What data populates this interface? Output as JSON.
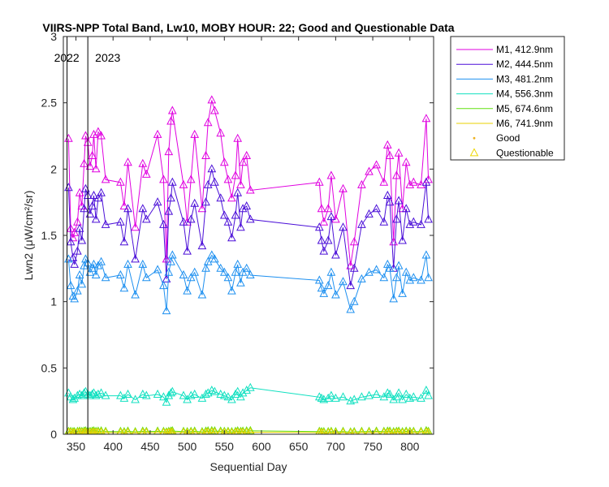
{
  "chart_data": {
    "type": "line",
    "title": "VIIRS-NPP Total Band, Lw10, MOBY HOUR: 22;  Good and Questionable Data",
    "xlabel": "Sequential Day",
    "ylabel": "Lwn2 (μW/cm²/sr)",
    "xlim": [
      333,
      832
    ],
    "ylim": [
      0,
      3
    ],
    "xticks": [
      350,
      400,
      450,
      500,
      550,
      600,
      650,
      700,
      750,
      800
    ],
    "yticks": [
      0,
      0.5,
      1,
      1.5,
      2,
      2.5,
      3
    ],
    "ytick_labels": [
      "0",
      "0.5",
      "1",
      "1.5",
      "2",
      "2.5",
      "3"
    ],
    "grid": false,
    "legend_position": "outside-top-right",
    "year_markers": [
      {
        "x": 338,
        "label": "2022"
      },
      {
        "x": 366,
        "label": "2023"
      }
    ],
    "markers": {
      "good": "Good",
      "questionable": "Questionable",
      "good_color": "#EDB120",
      "questionable_color": "#EDD700"
    },
    "x": [
      340,
      343,
      346,
      348,
      352,
      355,
      358,
      361,
      363,
      366,
      369,
      372,
      374,
      377,
      380,
      384,
      390,
      410,
      415,
      420,
      430,
      440,
      445,
      460,
      468,
      472,
      475,
      478,
      480,
      495,
      500,
      505,
      510,
      520,
      525,
      528,
      533,
      537,
      545,
      550,
      555,
      560,
      565,
      568,
      572,
      575,
      580,
      585,
      678,
      681,
      684,
      690,
      694,
      700,
      710,
      720,
      725,
      735,
      745,
      755,
      765,
      770,
      773,
      778,
      782,
      785,
      790,
      795,
      800,
      805,
      815,
      822,
      825
    ],
    "series": [
      {
        "name": "M1, 412.9nm",
        "color": "#E000E0",
        "values": [
          2.23,
          1.55,
          1.48,
          1.52,
          1.6,
          1.82,
          1.72,
          2.04,
          2.25,
          2.2,
          2.02,
          2.1,
          2.26,
          2.0,
          2.28,
          2.25,
          1.92,
          1.9,
          1.72,
          2.05,
          1.56,
          2.04,
          1.96,
          2.26,
          1.92,
          1.32,
          2.13,
          2.36,
          2.44,
          1.88,
          1.6,
          1.92,
          2.26,
          1.7,
          2.1,
          2.35,
          2.52,
          2.44,
          2.27,
          2.05,
          1.92,
          1.78,
          1.95,
          2.23,
          1.88,
          2.05,
          2.1,
          1.84,
          1.9,
          1.7,
          1.6,
          1.7,
          1.95,
          1.62,
          1.85,
          1.27,
          1.45,
          1.88,
          1.98,
          2.03,
          1.9,
          2.18,
          2.1,
          1.45,
          1.95,
          2.12,
          1.7,
          2.05,
          1.88,
          1.9,
          1.88,
          2.38,
          1.92
        ]
      },
      {
        "name": "M2, 444.5nm",
        "color": "#4B0FD8",
        "values": [
          1.86,
          1.45,
          1.33,
          1.28,
          1.38,
          1.55,
          1.46,
          1.7,
          1.85,
          1.8,
          1.66,
          1.72,
          1.8,
          1.62,
          1.78,
          1.82,
          1.58,
          1.6,
          1.45,
          1.7,
          1.32,
          1.7,
          1.62,
          1.75,
          1.58,
          1.17,
          1.68,
          1.78,
          1.9,
          1.6,
          1.38,
          1.62,
          1.74,
          1.42,
          1.75,
          1.88,
          2.0,
          1.9,
          1.78,
          1.65,
          1.6,
          1.48,
          1.65,
          1.82,
          1.56,
          1.7,
          1.72,
          1.62,
          1.56,
          1.46,
          1.38,
          1.46,
          1.64,
          1.35,
          1.56,
          1.12,
          1.25,
          1.58,
          1.66,
          1.7,
          1.6,
          1.8,
          1.75,
          1.25,
          1.62,
          1.76,
          1.46,
          1.7,
          1.58,
          1.6,
          1.58,
          1.9,
          1.62
        ]
      },
      {
        "name": "M3, 481.2nm",
        "color": "#1E90F0",
        "values": [
          1.32,
          1.12,
          1.04,
          1.02,
          1.08,
          1.2,
          1.13,
          1.27,
          1.32,
          1.29,
          1.22,
          1.25,
          1.28,
          1.2,
          1.27,
          1.3,
          1.18,
          1.2,
          1.1,
          1.28,
          1.05,
          1.28,
          1.18,
          1.24,
          1.12,
          0.93,
          1.22,
          1.3,
          1.35,
          1.2,
          1.08,
          1.18,
          1.22,
          1.05,
          1.25,
          1.3,
          1.35,
          1.32,
          1.25,
          1.22,
          1.18,
          1.08,
          1.22,
          1.28,
          1.14,
          1.22,
          1.25,
          1.2,
          1.16,
          1.1,
          1.06,
          1.12,
          1.22,
          1.05,
          1.15,
          0.94,
          1.0,
          1.17,
          1.22,
          1.24,
          1.18,
          1.28,
          1.25,
          1.02,
          1.18,
          1.27,
          1.06,
          1.22,
          1.16,
          1.18,
          1.16,
          1.35,
          1.18
        ]
      },
      {
        "name": "M4, 556.3nm",
        "color": "#10E0C0",
        "values": [
          0.31,
          0.28,
          0.26,
          0.27,
          0.29,
          0.3,
          0.29,
          0.31,
          0.32,
          0.3,
          0.29,
          0.3,
          0.31,
          0.29,
          0.3,
          0.31,
          0.29,
          0.29,
          0.27,
          0.3,
          0.26,
          0.3,
          0.29,
          0.3,
          0.28,
          0.24,
          0.29,
          0.31,
          0.32,
          0.29,
          0.26,
          0.29,
          0.3,
          0.27,
          0.3,
          0.31,
          0.33,
          0.32,
          0.3,
          0.29,
          0.28,
          0.26,
          0.3,
          0.32,
          0.28,
          0.31,
          0.33,
          0.35,
          0.28,
          0.27,
          0.26,
          0.27,
          0.29,
          0.27,
          0.28,
          0.25,
          0.26,
          0.28,
          0.29,
          0.3,
          0.28,
          0.31,
          0.3,
          0.26,
          0.28,
          0.31,
          0.26,
          0.3,
          0.27,
          0.28,
          0.27,
          0.33,
          0.29
        ]
      },
      {
        "name": "M5, 674.6nm",
        "color": "#60E010",
        "values": [
          0.02,
          0.02,
          0.018,
          0.018,
          0.02,
          0.022,
          0.02,
          0.022,
          0.024,
          0.022,
          0.02,
          0.022,
          0.024,
          0.02,
          0.022,
          0.024,
          0.02,
          0.02,
          0.018,
          0.022,
          0.018,
          0.022,
          0.02,
          0.022,
          0.02,
          0.016,
          0.02,
          0.022,
          0.024,
          0.02,
          0.018,
          0.02,
          0.022,
          0.018,
          0.022,
          0.024,
          0.026,
          0.024,
          0.022,
          0.02,
          0.02,
          0.018,
          0.02,
          0.024,
          0.02,
          0.022,
          0.024,
          0.026,
          0.02,
          0.018,
          0.018,
          0.018,
          0.02,
          0.018,
          0.02,
          0.016,
          0.018,
          0.02,
          0.02,
          0.022,
          0.02,
          0.022,
          0.022,
          0.018,
          0.02,
          0.022,
          0.018,
          0.022,
          0.02,
          0.02,
          0.02,
          0.026,
          0.02
        ]
      },
      {
        "name": "M6, 741.9nm",
        "color": "#E8D000",
        "values": [
          0.012,
          0.012,
          0.01,
          0.01,
          0.012,
          0.013,
          0.012,
          0.013,
          0.014,
          0.013,
          0.012,
          0.013,
          0.014,
          0.012,
          0.013,
          0.014,
          0.012,
          0.012,
          0.01,
          0.013,
          0.01,
          0.013,
          0.012,
          0.013,
          0.012,
          0.009,
          0.012,
          0.013,
          0.014,
          0.012,
          0.01,
          0.012,
          0.013,
          0.01,
          0.013,
          0.014,
          0.015,
          0.014,
          0.013,
          0.012,
          0.012,
          0.01,
          0.012,
          0.014,
          0.012,
          0.013,
          0.014,
          0.015,
          0.012,
          0.01,
          0.01,
          0.01,
          0.012,
          0.01,
          0.012,
          0.009,
          0.01,
          0.012,
          0.012,
          0.013,
          0.012,
          0.013,
          0.013,
          0.01,
          0.012,
          0.013,
          0.01,
          0.013,
          0.012,
          0.012,
          0.012,
          0.015,
          0.012
        ]
      }
    ]
  }
}
